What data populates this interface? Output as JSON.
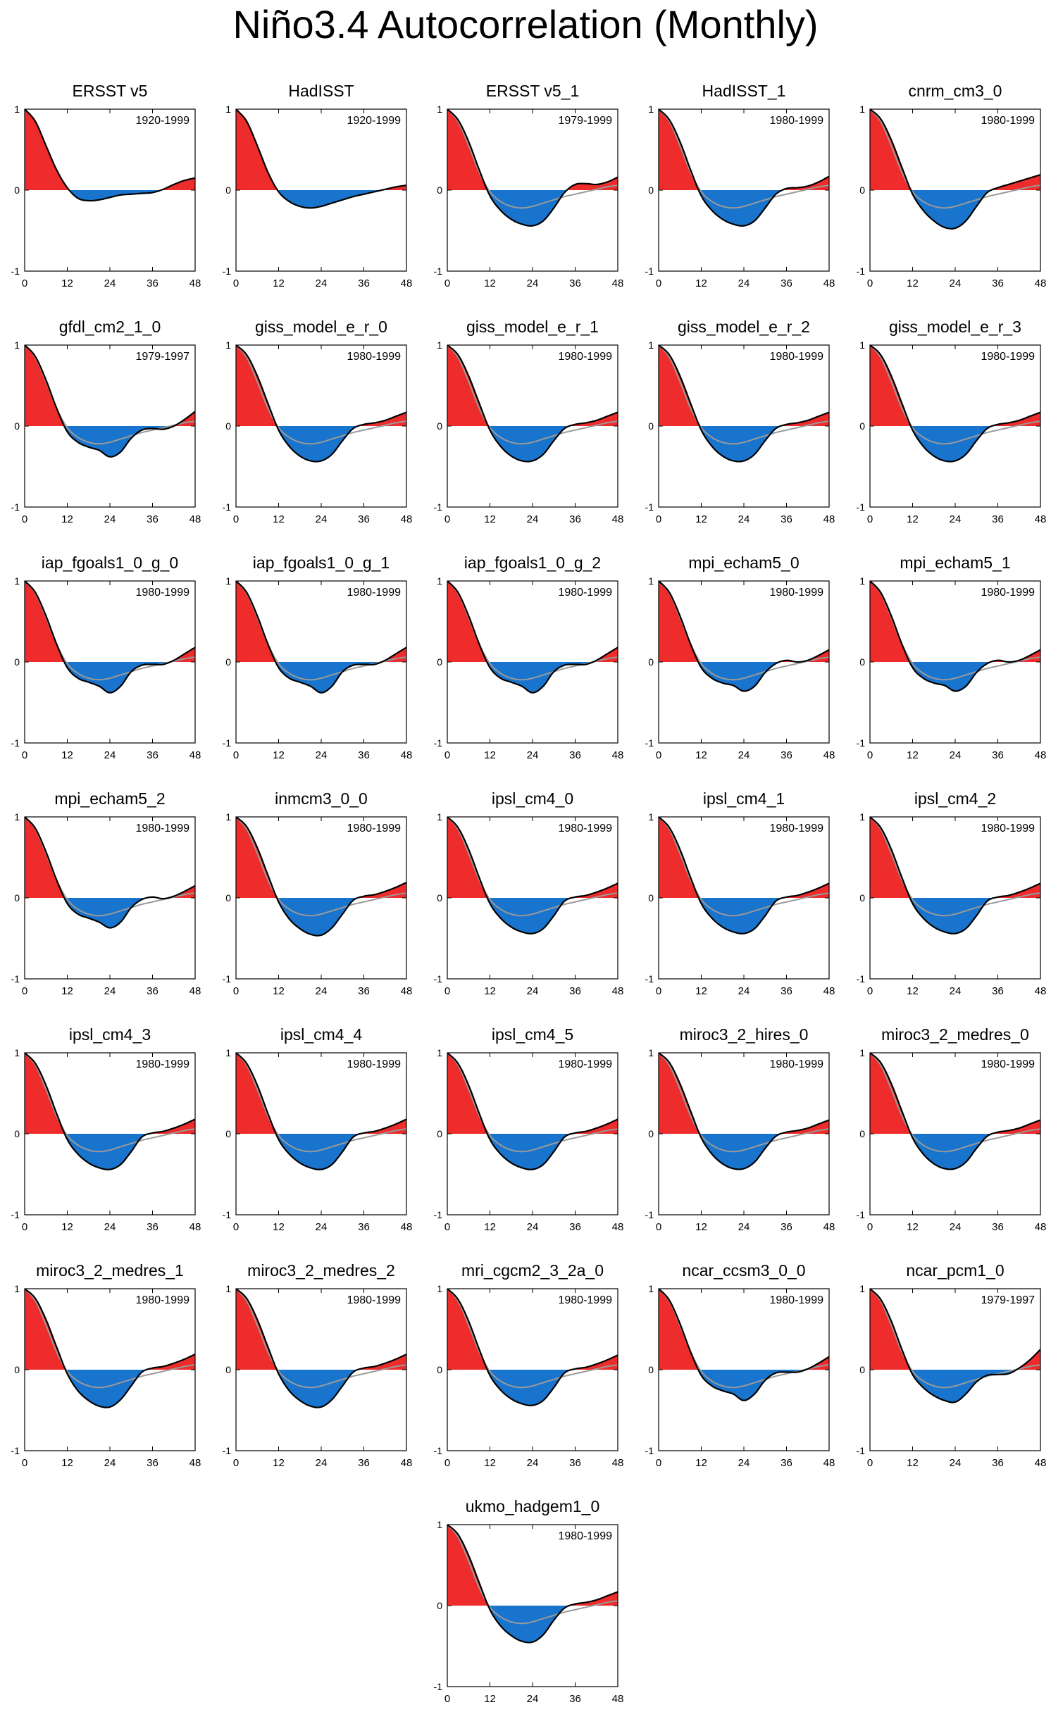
{
  "title": "Niño3.4 Autocorrelation (Monthly)",
  "colors": {
    "positive": "#ee2c2c",
    "negative": "#1874cd",
    "line": "#000000",
    "reference": "#9a9a9a"
  },
  "axes": {
    "xticks": [
      "0",
      "12",
      "24",
      "36",
      "48"
    ],
    "yticks": [
      "1",
      "0",
      "-1"
    ],
    "xlim": [
      0,
      48
    ],
    "ylim": [
      -1,
      1
    ]
  },
  "chart_data": [
    {
      "type": "area",
      "title": "ERSST v5",
      "period": "1920-1999",
      "x": [
        0,
        3,
        6,
        9,
        12,
        15,
        18,
        21,
        24,
        27,
        30,
        33,
        36,
        39,
        42,
        45,
        48
      ],
      "y": [
        1,
        0.85,
        0.55,
        0.25,
        0.03,
        -0.1,
        -0.13,
        -0.12,
        -0.09,
        -0.06,
        -0.05,
        -0.04,
        -0.03,
        0.01,
        0.07,
        0.12,
        0.15
      ]
    },
    {
      "type": "area",
      "title": "HadISST",
      "period": "1920-1999",
      "x": [
        0,
        3,
        6,
        9,
        12,
        15,
        18,
        21,
        24,
        27,
        30,
        33,
        36,
        39,
        42,
        45,
        48
      ],
      "y": [
        1,
        0.85,
        0.55,
        0.22,
        -0.02,
        -0.14,
        -0.2,
        -0.22,
        -0.2,
        -0.16,
        -0.12,
        -0.08,
        -0.05,
        -0.02,
        0.01,
        0.04,
        0.06
      ]
    },
    {
      "type": "area",
      "title": "ERSST v5_1",
      "period": "1979-1999",
      "x": [
        0,
        3,
        6,
        9,
        12,
        15,
        18,
        21,
        24,
        27,
        30,
        33,
        36,
        39,
        42,
        45,
        48
      ],
      "y": [
        1,
        0.87,
        0.6,
        0.25,
        -0.07,
        -0.25,
        -0.36,
        -0.42,
        -0.44,
        -0.38,
        -0.22,
        -0.03,
        0.07,
        0.08,
        0.07,
        0.1,
        0.16
      ]
    },
    {
      "type": "area",
      "title": "HadISST_1",
      "period": "1980-1999",
      "x": [
        0,
        3,
        6,
        9,
        12,
        15,
        18,
        21,
        24,
        27,
        30,
        33,
        36,
        39,
        42,
        45,
        48
      ],
      "y": [
        1,
        0.87,
        0.6,
        0.25,
        -0.07,
        -0.25,
        -0.36,
        -0.42,
        -0.44,
        -0.38,
        -0.22,
        -0.05,
        0.02,
        0.03,
        0.05,
        0.1,
        0.17
      ]
    },
    {
      "type": "area",
      "title": "cnrm_cm3_0",
      "period": "1980-1999",
      "x": [
        0,
        3,
        6,
        9,
        12,
        15,
        18,
        21,
        24,
        27,
        30,
        33,
        36,
        39,
        42,
        45,
        48
      ],
      "y": [
        1,
        0.88,
        0.62,
        0.28,
        -0.05,
        -0.25,
        -0.38,
        -0.46,
        -0.47,
        -0.38,
        -0.2,
        -0.03,
        0.03,
        0.07,
        0.11,
        0.15,
        0.19
      ]
    },
    {
      "type": "area",
      "title": "gfdl_cm2_1_0",
      "period": "1979-1997",
      "x": [
        0,
        3,
        6,
        9,
        12,
        15,
        18,
        21,
        24,
        27,
        30,
        33,
        36,
        39,
        42,
        45,
        48
      ],
      "y": [
        1,
        0.86,
        0.57,
        0.22,
        -0.07,
        -0.2,
        -0.26,
        -0.3,
        -0.38,
        -0.32,
        -0.15,
        -0.05,
        -0.03,
        -0.04,
        0,
        0.08,
        0.18
      ]
    },
    {
      "type": "area",
      "title": "giss_model_e_r_0",
      "period": "1980-1999",
      "x": [
        0,
        3,
        6,
        9,
        12,
        15,
        18,
        21,
        24,
        27,
        30,
        33,
        36,
        39,
        42,
        45,
        48
      ],
      "y": [
        1,
        0.88,
        0.62,
        0.28,
        -0.05,
        -0.25,
        -0.37,
        -0.43,
        -0.43,
        -0.35,
        -0.18,
        -0.03,
        0.02,
        0.04,
        0.07,
        0.12,
        0.17
      ]
    },
    {
      "type": "area",
      "title": "giss_model_e_r_1",
      "period": "1980-1999",
      "x": [
        0,
        3,
        6,
        9,
        12,
        15,
        18,
        21,
        24,
        27,
        30,
        33,
        36,
        39,
        42,
        45,
        48
      ],
      "y": [
        1,
        0.88,
        0.62,
        0.28,
        -0.05,
        -0.25,
        -0.37,
        -0.43,
        -0.43,
        -0.35,
        -0.18,
        -0.03,
        0.02,
        0.04,
        0.07,
        0.12,
        0.17
      ]
    },
    {
      "type": "area",
      "title": "giss_model_e_r_2",
      "period": "1980-1999",
      "x": [
        0,
        3,
        6,
        9,
        12,
        15,
        18,
        21,
        24,
        27,
        30,
        33,
        36,
        39,
        42,
        45,
        48
      ],
      "y": [
        1,
        0.88,
        0.62,
        0.28,
        -0.05,
        -0.25,
        -0.37,
        -0.43,
        -0.43,
        -0.35,
        -0.18,
        -0.03,
        0.02,
        0.04,
        0.07,
        0.12,
        0.17
      ]
    },
    {
      "type": "area",
      "title": "giss_model_e_r_3",
      "period": "1980-1999",
      "x": [
        0,
        3,
        6,
        9,
        12,
        15,
        18,
        21,
        24,
        27,
        30,
        33,
        36,
        39,
        42,
        45,
        48
      ],
      "y": [
        1,
        0.88,
        0.62,
        0.28,
        -0.05,
        -0.25,
        -0.37,
        -0.43,
        -0.43,
        -0.35,
        -0.18,
        -0.03,
        0.02,
        0.04,
        0.07,
        0.12,
        0.17
      ]
    },
    {
      "type": "area",
      "title": "iap_fgoals1_0_g_0",
      "period": "1980-1999",
      "x": [
        0,
        3,
        6,
        9,
        12,
        15,
        18,
        21,
        24,
        27,
        30,
        33,
        36,
        39,
        42,
        45,
        48
      ],
      "y": [
        1,
        0.86,
        0.57,
        0.22,
        -0.07,
        -0.2,
        -0.25,
        -0.3,
        -0.38,
        -0.3,
        -0.12,
        -0.04,
        -0.03,
        -0.03,
        0.02,
        0.1,
        0.18
      ]
    },
    {
      "type": "area",
      "title": "iap_fgoals1_0_g_1",
      "period": "1980-1999",
      "x": [
        0,
        3,
        6,
        9,
        12,
        15,
        18,
        21,
        24,
        27,
        30,
        33,
        36,
        39,
        42,
        45,
        48
      ],
      "y": [
        1,
        0.86,
        0.57,
        0.22,
        -0.07,
        -0.2,
        -0.25,
        -0.3,
        -0.38,
        -0.3,
        -0.12,
        -0.04,
        -0.03,
        -0.03,
        0.02,
        0.1,
        0.18
      ]
    },
    {
      "type": "area",
      "title": "iap_fgoals1_0_g_2",
      "period": "1980-1999",
      "x": [
        0,
        3,
        6,
        9,
        12,
        15,
        18,
        21,
        24,
        27,
        30,
        33,
        36,
        39,
        42,
        45,
        48
      ],
      "y": [
        1,
        0.86,
        0.57,
        0.22,
        -0.07,
        -0.2,
        -0.25,
        -0.3,
        -0.38,
        -0.3,
        -0.12,
        -0.04,
        -0.03,
        -0.03,
        0.02,
        0.1,
        0.18
      ]
    },
    {
      "type": "area",
      "title": "mpi_echam5_0",
      "period": "1980-1999",
      "x": [
        0,
        3,
        6,
        9,
        12,
        15,
        18,
        21,
        24,
        27,
        30,
        33,
        36,
        39,
        42,
        45,
        48
      ],
      "y": [
        1,
        0.86,
        0.57,
        0.22,
        -0.07,
        -0.2,
        -0.26,
        -0.29,
        -0.36,
        -0.3,
        -0.13,
        -0.02,
        0.02,
        0,
        0.02,
        0.08,
        0.15
      ]
    },
    {
      "type": "area",
      "title": "mpi_echam5_1",
      "period": "1980-1999",
      "x": [
        0,
        3,
        6,
        9,
        12,
        15,
        18,
        21,
        24,
        27,
        30,
        33,
        36,
        39,
        42,
        45,
        48
      ],
      "y": [
        1,
        0.86,
        0.57,
        0.22,
        -0.07,
        -0.2,
        -0.26,
        -0.29,
        -0.36,
        -0.3,
        -0.13,
        -0.02,
        0.02,
        0,
        0.02,
        0.08,
        0.15
      ]
    },
    {
      "type": "area",
      "title": "mpi_echam5_2",
      "period": "1980-1999",
      "x": [
        0,
        3,
        6,
        9,
        12,
        15,
        18,
        21,
        24,
        27,
        30,
        33,
        36,
        39,
        42,
        45,
        48
      ],
      "y": [
        1,
        0.86,
        0.57,
        0.22,
        -0.07,
        -0.2,
        -0.25,
        -0.3,
        -0.37,
        -0.3,
        -0.12,
        -0.02,
        0.01,
        -0.01,
        0.02,
        0.08,
        0.15
      ]
    },
    {
      "type": "area",
      "title": "inmcm3_0_0",
      "period": "1980-1999",
      "x": [
        0,
        3,
        6,
        9,
        12,
        15,
        18,
        21,
        24,
        27,
        30,
        33,
        36,
        39,
        42,
        45,
        48
      ],
      "y": [
        1,
        0.88,
        0.62,
        0.28,
        -0.05,
        -0.26,
        -0.38,
        -0.45,
        -0.46,
        -0.37,
        -0.2,
        -0.03,
        0.02,
        0.04,
        0.08,
        0.13,
        0.19
      ]
    },
    {
      "type": "area",
      "title": "ipsl_cm4_0",
      "period": "1980-1999",
      "x": [
        0,
        3,
        6,
        9,
        12,
        15,
        18,
        21,
        24,
        27,
        30,
        33,
        36,
        39,
        42,
        45,
        48
      ],
      "y": [
        1,
        0.87,
        0.6,
        0.25,
        -0.07,
        -0.25,
        -0.36,
        -0.42,
        -0.44,
        -0.38,
        -0.22,
        -0.04,
        0.01,
        0.03,
        0.07,
        0.12,
        0.18
      ]
    },
    {
      "type": "area",
      "title": "ipsl_cm4_1",
      "period": "1980-1999",
      "x": [
        0,
        3,
        6,
        9,
        12,
        15,
        18,
        21,
        24,
        27,
        30,
        33,
        36,
        39,
        42,
        45,
        48
      ],
      "y": [
        1,
        0.87,
        0.6,
        0.25,
        -0.07,
        -0.25,
        -0.36,
        -0.42,
        -0.44,
        -0.38,
        -0.22,
        -0.04,
        0.01,
        0.03,
        0.07,
        0.12,
        0.18
      ]
    },
    {
      "type": "area",
      "title": "ipsl_cm4_2",
      "period": "1980-1999",
      "x": [
        0,
        3,
        6,
        9,
        12,
        15,
        18,
        21,
        24,
        27,
        30,
        33,
        36,
        39,
        42,
        45,
        48
      ],
      "y": [
        1,
        0.87,
        0.6,
        0.25,
        -0.07,
        -0.25,
        -0.36,
        -0.42,
        -0.44,
        -0.38,
        -0.22,
        -0.04,
        0.01,
        0.03,
        0.07,
        0.12,
        0.18
      ]
    },
    {
      "type": "area",
      "title": "ipsl_cm4_3",
      "period": "1980-1999",
      "x": [
        0,
        3,
        6,
        9,
        12,
        15,
        18,
        21,
        24,
        27,
        30,
        33,
        36,
        39,
        42,
        45,
        48
      ],
      "y": [
        1,
        0.87,
        0.6,
        0.25,
        -0.07,
        -0.25,
        -0.36,
        -0.42,
        -0.44,
        -0.38,
        -0.22,
        -0.04,
        0.01,
        0.03,
        0.07,
        0.12,
        0.18
      ]
    },
    {
      "type": "area",
      "title": "ipsl_cm4_4",
      "period": "1980-1999",
      "x": [
        0,
        3,
        6,
        9,
        12,
        15,
        18,
        21,
        24,
        27,
        30,
        33,
        36,
        39,
        42,
        45,
        48
      ],
      "y": [
        1,
        0.87,
        0.6,
        0.25,
        -0.07,
        -0.25,
        -0.36,
        -0.42,
        -0.44,
        -0.38,
        -0.22,
        -0.04,
        0.01,
        0.03,
        0.07,
        0.12,
        0.18
      ]
    },
    {
      "type": "area",
      "title": "ipsl_cm4_5",
      "period": "1980-1999",
      "x": [
        0,
        3,
        6,
        9,
        12,
        15,
        18,
        21,
        24,
        27,
        30,
        33,
        36,
        39,
        42,
        45,
        48
      ],
      "y": [
        1,
        0.87,
        0.6,
        0.25,
        -0.07,
        -0.25,
        -0.36,
        -0.42,
        -0.44,
        -0.38,
        -0.22,
        -0.04,
        0.01,
        0.03,
        0.07,
        0.12,
        0.18
      ]
    },
    {
      "type": "area",
      "title": "miroc3_2_hires_0",
      "period": "1980-1999",
      "x": [
        0,
        3,
        6,
        9,
        12,
        15,
        18,
        21,
        24,
        27,
        30,
        33,
        36,
        39,
        42,
        45,
        48
      ],
      "y": [
        1,
        0.88,
        0.62,
        0.28,
        -0.05,
        -0.25,
        -0.37,
        -0.43,
        -0.43,
        -0.35,
        -0.18,
        -0.03,
        0.02,
        0.04,
        0.07,
        0.12,
        0.17
      ]
    },
    {
      "type": "area",
      "title": "miroc3_2_medres_0",
      "period": "1980-1999",
      "x": [
        0,
        3,
        6,
        9,
        12,
        15,
        18,
        21,
        24,
        27,
        30,
        33,
        36,
        39,
        42,
        45,
        48
      ],
      "y": [
        1,
        0.88,
        0.62,
        0.28,
        -0.05,
        -0.25,
        -0.37,
        -0.43,
        -0.43,
        -0.35,
        -0.18,
        -0.03,
        0.02,
        0.04,
        0.07,
        0.12,
        0.17
      ]
    },
    {
      "type": "area",
      "title": "miroc3_2_medres_1",
      "period": "1980-1999",
      "x": [
        0,
        3,
        6,
        9,
        12,
        15,
        18,
        21,
        24,
        27,
        30,
        33,
        36,
        39,
        42,
        45,
        48
      ],
      "y": [
        1,
        0.88,
        0.62,
        0.28,
        -0.05,
        -0.26,
        -0.38,
        -0.45,
        -0.46,
        -0.37,
        -0.2,
        -0.03,
        0.02,
        0.04,
        0.08,
        0.13,
        0.19
      ]
    },
    {
      "type": "area",
      "title": "miroc3_2_medres_2",
      "period": "1980-1999",
      "x": [
        0,
        3,
        6,
        9,
        12,
        15,
        18,
        21,
        24,
        27,
        30,
        33,
        36,
        39,
        42,
        45,
        48
      ],
      "y": [
        1,
        0.88,
        0.62,
        0.28,
        -0.05,
        -0.26,
        -0.38,
        -0.45,
        -0.46,
        -0.37,
        -0.2,
        -0.03,
        0.02,
        0.04,
        0.08,
        0.13,
        0.19
      ]
    },
    {
      "type": "area",
      "title": "mri_cgcm2_3_2a_0",
      "period": "1980-1999",
      "x": [
        0,
        3,
        6,
        9,
        12,
        15,
        18,
        21,
        24,
        27,
        30,
        33,
        36,
        39,
        42,
        45,
        48
      ],
      "y": [
        1,
        0.87,
        0.6,
        0.25,
        -0.07,
        -0.25,
        -0.36,
        -0.42,
        -0.44,
        -0.38,
        -0.22,
        -0.04,
        0.01,
        0.03,
        0.07,
        0.12,
        0.18
      ]
    },
    {
      "type": "area",
      "title": "ncar_ccsm3_0_0",
      "period": "1980-1999",
      "x": [
        0,
        3,
        6,
        9,
        12,
        15,
        18,
        21,
        24,
        27,
        30,
        33,
        36,
        39,
        42,
        45,
        48
      ],
      "y": [
        1,
        0.86,
        0.57,
        0.22,
        -0.07,
        -0.2,
        -0.26,
        -0.3,
        -0.38,
        -0.3,
        -0.13,
        -0.04,
        -0.03,
        -0.03,
        0.01,
        0.08,
        0.16
      ]
    },
    {
      "type": "area",
      "title": "ncar_pcm1_0",
      "period": "1979-1997",
      "x": [
        0,
        3,
        6,
        9,
        12,
        15,
        18,
        21,
        24,
        27,
        30,
        33,
        36,
        39,
        42,
        45,
        48
      ],
      "y": [
        1,
        0.87,
        0.6,
        0.25,
        -0.06,
        -0.22,
        -0.32,
        -0.38,
        -0.4,
        -0.3,
        -0.15,
        -0.07,
        -0.06,
        -0.05,
        0.02,
        0.12,
        0.25
      ]
    },
    {
      "type": "area",
      "title": "ukmo_hadgem1_0",
      "period": "1980-1999",
      "x": [
        0,
        3,
        6,
        9,
        12,
        15,
        18,
        21,
        24,
        27,
        30,
        33,
        36,
        39,
        42,
        45,
        48
      ],
      "y": [
        1,
        0.88,
        0.62,
        0.28,
        -0.05,
        -0.25,
        -0.37,
        -0.44,
        -0.45,
        -0.36,
        -0.18,
        -0.03,
        0.02,
        0.04,
        0.07,
        0.12,
        0.17
      ]
    }
  ],
  "reference_series": {
    "x": [
      0,
      3,
      6,
      9,
      12,
      15,
      18,
      21,
      24,
      27,
      30,
      33,
      36,
      39,
      42,
      45,
      48
    ],
    "y": [
      1,
      0.85,
      0.55,
      0.22,
      -0.02,
      -0.14,
      -0.2,
      -0.22,
      -0.2,
      -0.16,
      -0.12,
      -0.08,
      -0.05,
      -0.02,
      0.01,
      0.04,
      0.06
    ]
  }
}
